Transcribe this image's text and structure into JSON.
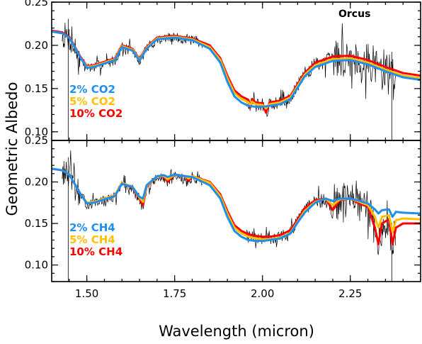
{
  "chart_data": {
    "type": "line",
    "xlabel": "Wavelength (micron)",
    "ylabel": "Geometric Albedo",
    "xlim": [
      1.4,
      2.45
    ],
    "x_ticks": [
      "1.50",
      "1.75",
      "2.00",
      "2.25"
    ],
    "x_tick_values": [
      1.5,
      1.75,
      2.0,
      2.25
    ],
    "grid": false,
    "panels": [
      {
        "annotation": "Orcus",
        "ylim": [
          0.09,
          0.25
        ],
        "y_ticks": [
          "0.10",
          "0.15",
          "0.20",
          "0.25"
        ],
        "y_tick_values": [
          0.1,
          0.15,
          0.2,
          0.25
        ],
        "legend_placement": "left-middle",
        "legend": [
          "2% CO2",
          "5% CO2",
          "10% CO2"
        ],
        "series": [
          {
            "name": "10% CO2",
            "color": "#ff0000",
            "x": [
              1.4,
              1.43,
              1.45,
              1.48,
              1.5,
              1.52,
              1.55,
              1.58,
              1.6,
              1.63,
              1.65,
              1.67,
              1.7,
              1.75,
              1.8,
              1.85,
              1.88,
              1.9,
              1.92,
              1.94,
              1.96,
              1.965,
              1.97,
              1.98,
              2.0,
              2.01,
              2.02,
              2.05,
              2.08,
              2.1,
              2.12,
              2.15,
              2.2,
              2.25,
              2.3,
              2.35,
              2.4,
              2.45
            ],
            "y": [
              0.217,
              0.215,
              0.21,
              0.188,
              0.176,
              0.177,
              0.181,
              0.185,
              0.2,
              0.196,
              0.184,
              0.198,
              0.209,
              0.211,
              0.208,
              0.2,
              0.185,
              0.165,
              0.148,
              0.141,
              0.137,
              0.128,
              0.138,
              0.134,
              0.133,
              0.122,
              0.134,
              0.136,
              0.142,
              0.155,
              0.168,
              0.18,
              0.187,
              0.188,
              0.183,
              0.175,
              0.168,
              0.165
            ]
          },
          {
            "name": "5% CO2",
            "color": "#ffc000",
            "x": [
              1.4,
              1.43,
              1.45,
              1.48,
              1.5,
              1.52,
              1.55,
              1.58,
              1.6,
              1.63,
              1.65,
              1.67,
              1.7,
              1.75,
              1.8,
              1.85,
              1.88,
              1.9,
              1.92,
              1.94,
              1.96,
              1.965,
              1.97,
              1.98,
              2.0,
              2.01,
              2.02,
              2.05,
              2.08,
              2.1,
              2.12,
              2.15,
              2.2,
              2.25,
              2.3,
              2.35,
              2.4,
              2.45
            ],
            "y": [
              0.216,
              0.214,
              0.209,
              0.187,
              0.175,
              0.176,
              0.18,
              0.184,
              0.199,
              0.195,
              0.183,
              0.197,
              0.208,
              0.21,
              0.207,
              0.198,
              0.183,
              0.162,
              0.145,
              0.138,
              0.134,
              0.13,
              0.135,
              0.132,
              0.131,
              0.127,
              0.132,
              0.134,
              0.14,
              0.153,
              0.166,
              0.177,
              0.184,
              0.185,
              0.18,
              0.172,
              0.165,
              0.162
            ]
          },
          {
            "name": "2% CO2",
            "color": "#1e8ff0",
            "x": [
              1.4,
              1.43,
              1.45,
              1.48,
              1.5,
              1.52,
              1.55,
              1.58,
              1.6,
              1.63,
              1.65,
              1.67,
              1.7,
              1.75,
              1.8,
              1.85,
              1.88,
              1.9,
              1.92,
              1.94,
              1.96,
              1.98,
              2.0,
              2.02,
              2.05,
              2.08,
              2.1,
              2.12,
              2.15,
              2.2,
              2.25,
              2.3,
              2.35,
              2.4,
              2.45
            ],
            "y": [
              0.216,
              0.214,
              0.209,
              0.187,
              0.174,
              0.175,
              0.179,
              0.183,
              0.198,
              0.194,
              0.182,
              0.196,
              0.207,
              0.209,
              0.206,
              0.196,
              0.18,
              0.158,
              0.141,
              0.134,
              0.13,
              0.129,
              0.129,
              0.13,
              0.132,
              0.138,
              0.151,
              0.164,
              0.175,
              0.182,
              0.183,
              0.178,
              0.17,
              0.163,
              0.16
            ]
          }
        ],
        "observed": {
          "name": "",
          "color": "#000000",
          "seed": 7
        }
      },
      {
        "annotation": "",
        "ylim": [
          0.08,
          0.25
        ],
        "y_ticks": [
          "0.10",
          "0.15",
          "0.20",
          "0.25"
        ],
        "y_tick_values": [
          0.1,
          0.15,
          0.2,
          0.25
        ],
        "legend_placement": "left-middle",
        "legend": [
          "2% CH4",
          "5% CH4",
          "10% CH4"
        ],
        "series": [
          {
            "name": "10% CH4",
            "color": "#ff0000",
            "x": [
              1.4,
              1.43,
              1.45,
              1.48,
              1.5,
              1.52,
              1.55,
              1.58,
              1.6,
              1.63,
              1.65,
              1.66,
              1.67,
              1.7,
              1.72,
              1.73,
              1.75,
              1.78,
              1.79,
              1.8,
              1.85,
              1.88,
              1.9,
              1.92,
              1.94,
              1.96,
              1.98,
              2.0,
              2.02,
              2.05,
              2.08,
              2.1,
              2.12,
              2.15,
              2.18,
              2.2,
              2.22,
              2.25,
              2.27,
              2.3,
              2.32,
              2.33,
              2.34,
              2.36,
              2.37,
              2.38,
              2.4,
              2.45
            ],
            "y": [
              0.216,
              0.214,
              0.209,
              0.187,
              0.175,
              0.176,
              0.18,
              0.184,
              0.199,
              0.193,
              0.18,
              0.172,
              0.194,
              0.207,
              0.206,
              0.2,
              0.209,
              0.207,
              0.201,
              0.207,
              0.2,
              0.185,
              0.165,
              0.148,
              0.141,
              0.137,
              0.135,
              0.134,
              0.134,
              0.136,
              0.142,
              0.155,
              0.168,
              0.178,
              0.18,
              0.166,
              0.178,
              0.18,
              0.175,
              0.17,
              0.145,
              0.125,
              0.15,
              0.155,
              0.125,
              0.145,
              0.15,
              0.15
            ]
          },
          {
            "name": "5% CH4",
            "color": "#ffc000",
            "x": [
              1.4,
              1.43,
              1.45,
              1.48,
              1.5,
              1.52,
              1.55,
              1.58,
              1.6,
              1.63,
              1.65,
              1.66,
              1.67,
              1.7,
              1.72,
              1.73,
              1.75,
              1.78,
              1.79,
              1.8,
              1.85,
              1.88,
              1.9,
              1.92,
              1.94,
              1.96,
              1.98,
              2.0,
              2.02,
              2.05,
              2.08,
              2.1,
              2.12,
              2.15,
              2.18,
              2.2,
              2.22,
              2.25,
              2.27,
              2.3,
              2.32,
              2.33,
              2.34,
              2.36,
              2.37,
              2.38,
              2.4,
              2.45
            ],
            "y": [
              0.216,
              0.214,
              0.209,
              0.187,
              0.175,
              0.176,
              0.18,
              0.184,
              0.199,
              0.194,
              0.181,
              0.176,
              0.195,
              0.207,
              0.207,
              0.203,
              0.209,
              0.207,
              0.204,
              0.207,
              0.199,
              0.183,
              0.162,
              0.145,
              0.138,
              0.134,
              0.132,
              0.131,
              0.131,
              0.133,
              0.139,
              0.152,
              0.165,
              0.176,
              0.18,
              0.172,
              0.179,
              0.18,
              0.177,
              0.172,
              0.158,
              0.145,
              0.158,
              0.16,
              0.14,
              0.154,
              0.156,
              0.155
            ]
          },
          {
            "name": "2% CH4",
            "color": "#1e8ff0",
            "x": [
              1.4,
              1.43,
              1.45,
              1.48,
              1.5,
              1.52,
              1.55,
              1.58,
              1.6,
              1.63,
              1.65,
              1.66,
              1.67,
              1.7,
              1.72,
              1.73,
              1.75,
              1.78,
              1.8,
              1.85,
              1.88,
              1.9,
              1.92,
              1.94,
              1.96,
              1.98,
              2.0,
              2.02,
              2.05,
              2.08,
              2.1,
              2.12,
              2.15,
              2.18,
              2.2,
              2.22,
              2.25,
              2.27,
              2.3,
              2.32,
              2.33,
              2.34,
              2.36,
              2.37,
              2.38,
              2.4,
              2.45
            ],
            "y": [
              0.216,
              0.214,
              0.209,
              0.187,
              0.174,
              0.175,
              0.179,
              0.183,
              0.198,
              0.194,
              0.182,
              0.18,
              0.196,
              0.207,
              0.208,
              0.206,
              0.209,
              0.207,
              0.206,
              0.196,
              0.18,
              0.158,
              0.141,
              0.134,
              0.13,
              0.129,
              0.129,
              0.13,
              0.132,
              0.138,
              0.151,
              0.163,
              0.175,
              0.18,
              0.177,
              0.18,
              0.18,
              0.178,
              0.174,
              0.167,
              0.162,
              0.166,
              0.167,
              0.158,
              0.164,
              0.163,
              0.162
            ]
          }
        ],
        "observed": {
          "name": "",
          "color": "#000000",
          "seed": 13
        }
      }
    ]
  }
}
